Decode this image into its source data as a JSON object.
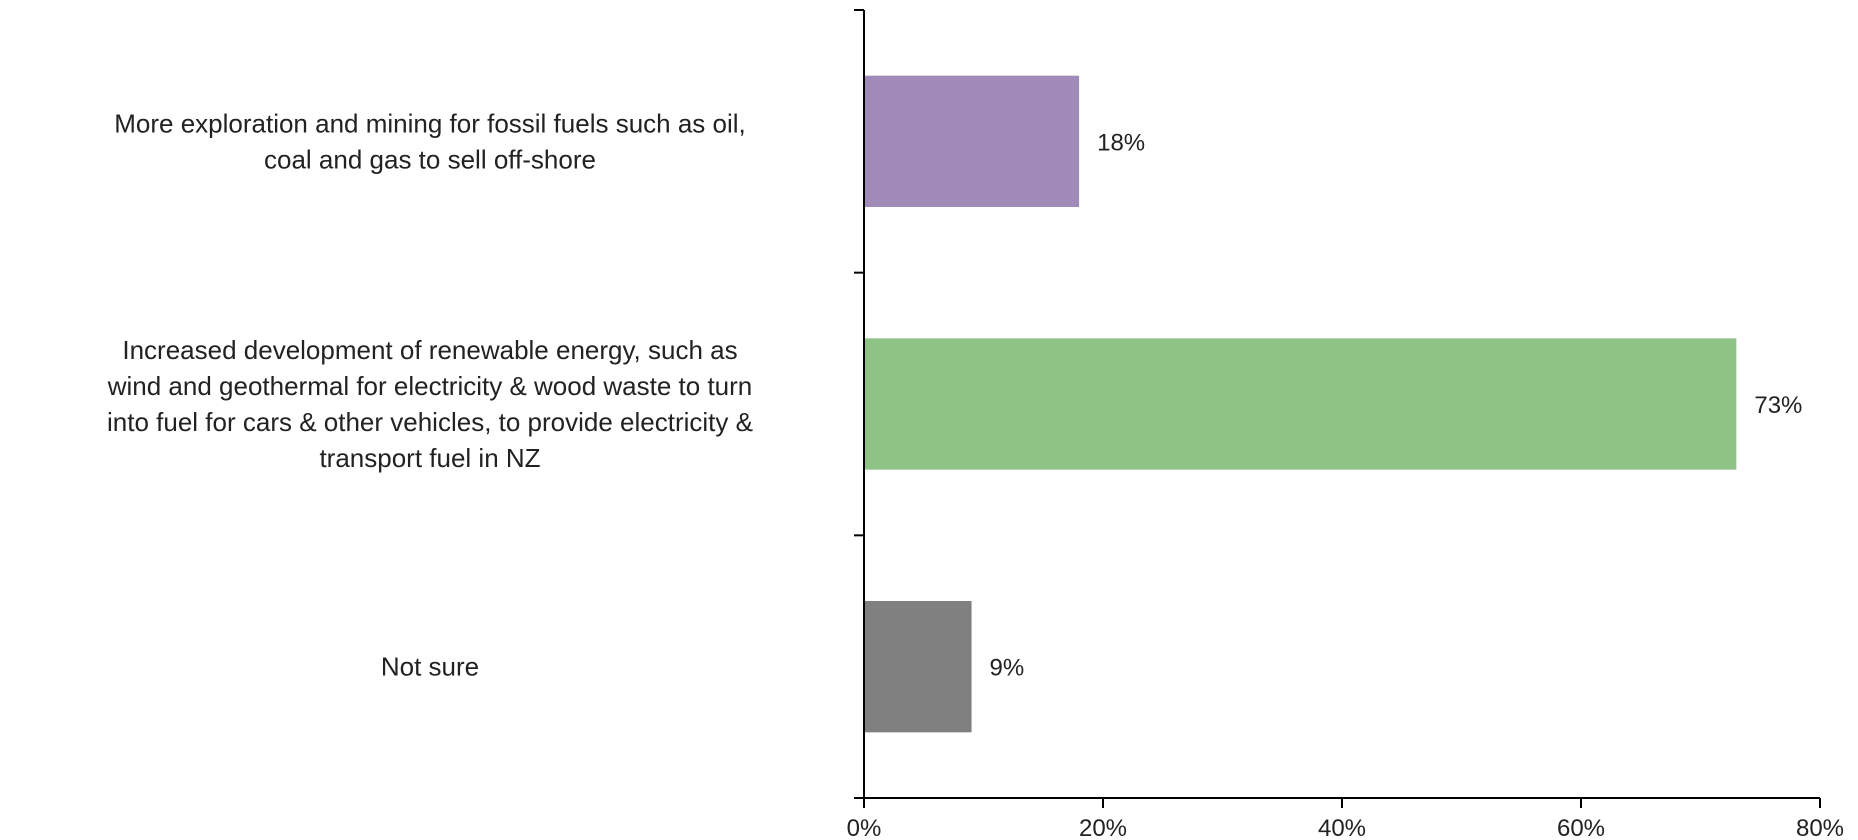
{
  "chart_data": {
    "type": "bar",
    "orientation": "horizontal",
    "title": "",
    "xlabel": "",
    "ylabel": "",
    "xlim": [
      0,
      80
    ],
    "grid": false,
    "legend": "none",
    "x_ticks": [
      "0%",
      "20%",
      "40%",
      "60%",
      "80%"
    ],
    "x_tick_values": [
      0,
      20,
      40,
      60,
      80
    ],
    "categories": [
      "More exploration and mining for fossil fuels such as oil, coal and gas to sell off-shore",
      "Increased development of renewable energy, such as wind and geothermal for electricity & wood waste to turn into fuel for cars & other vehicles, to provide electricity & transport fuel in NZ",
      "Not sure"
    ],
    "category_lines": [
      [
        "More exploration and mining for fossil fuels such as oil,",
        "coal and gas to sell off-shore"
      ],
      [
        "Increased development of renewable energy, such as",
        "wind and geothermal for electricity & wood waste to turn",
        "into fuel for cars & other vehicles, to provide electricity &",
        "transport fuel in NZ"
      ],
      [
        "Not sure"
      ]
    ],
    "values": [
      18,
      73,
      9
    ],
    "data_labels": [
      "18%",
      "73%",
      "9%"
    ],
    "colors": [
      "#a08ab8",
      "#8fc386",
      "#808080"
    ]
  }
}
